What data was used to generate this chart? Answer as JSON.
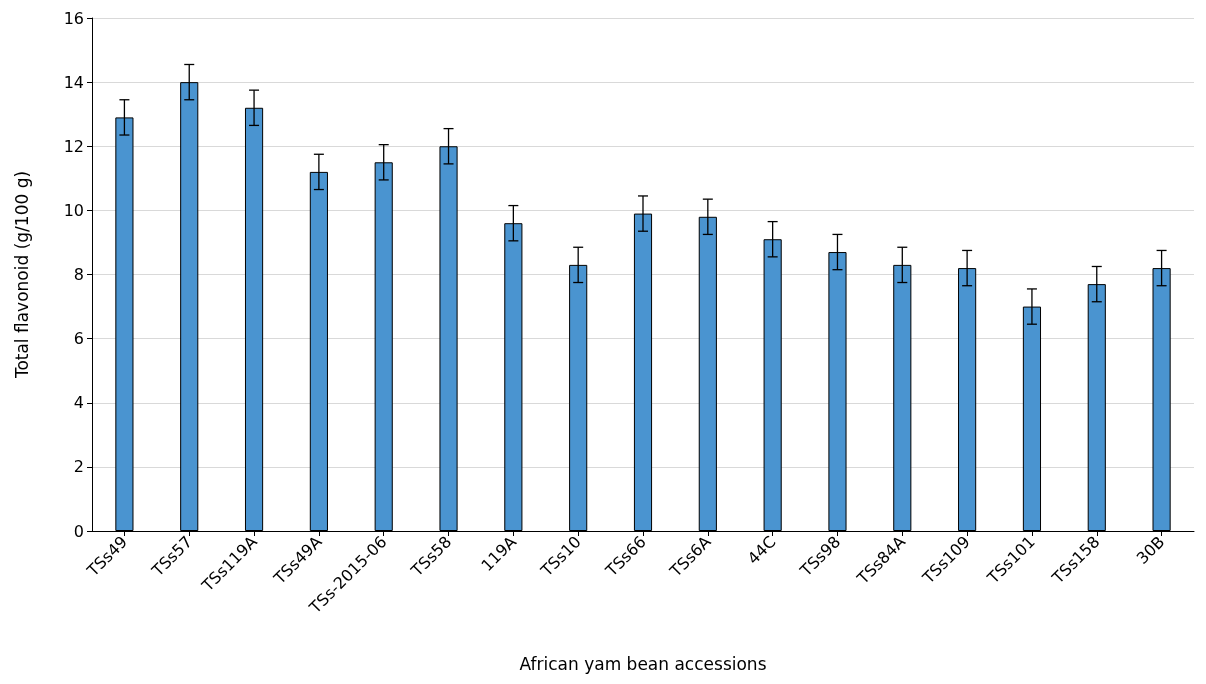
{
  "chart_data": {
    "type": "bar",
    "xlabel": "African yam bean accessions",
    "ylabel": "Total flavonoid (g/100 g)",
    "categories": [
      "TSs49",
      "TSs57",
      "TSs119A",
      "TSs49A",
      "TSs-2015-06",
      "TSs58",
      "119A",
      "TSs10",
      "TSs66",
      "TSs6A",
      "44C",
      "TSs98",
      "TSs84A",
      "TSs109",
      "TSs101",
      "TSs158",
      "30B"
    ],
    "values": [
      12.9,
      14.0,
      13.2,
      11.2,
      11.5,
      12.0,
      9.6,
      8.3,
      9.9,
      9.8,
      9.1,
      8.7,
      8.3,
      8.2,
      7.0,
      7.7,
      8.2
    ],
    "errors": [
      0.55,
      0.55,
      0.55,
      0.55,
      0.55,
      0.55,
      0.55,
      0.55,
      0.55,
      0.55,
      0.55,
      0.55,
      0.55,
      0.55,
      0.55,
      0.55,
      0.55
    ],
    "color": "#4a94d0",
    "ylim": [
      0,
      16
    ],
    "yticks": [
      0,
      2,
      4,
      6,
      8,
      10,
      12,
      14,
      16
    ],
    "grid": "y"
  }
}
